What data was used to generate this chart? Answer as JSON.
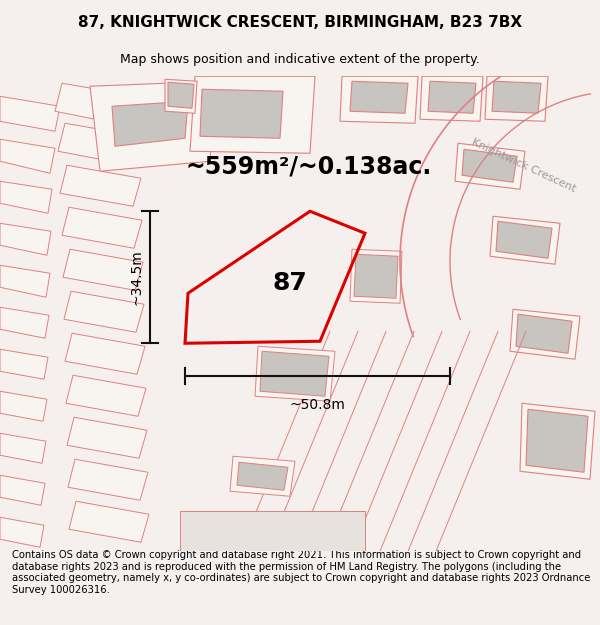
{
  "title": "87, KNIGHTWICK CRESCENT, BIRMINGHAM, B23 7BX",
  "subtitle": "Map shows position and indicative extent of the property.",
  "area_text": "~559m²/~0.138ac.",
  "width_text": "~50.8m",
  "height_text": "~34.5m",
  "property_number": "87",
  "street_label": "Knightwick Crescent",
  "footer_text": "Contains OS data © Crown copyright and database right 2021. This information is subject to Crown copyright and database rights 2023 and is reproduced with the permission of HM Land Registry. The polygons (including the associated geometry, namely x, y co-ordinates) are subject to Crown copyright and database rights 2023 Ordnance Survey 100026316.",
  "bg_color": "#f5f0ee",
  "map_bg_color": "#f0ebe8",
  "outline_color": "#e08080",
  "property_outline_color": "#dd0000",
  "building_fill": "#c8c4c0",
  "dim_line_color": "#111111",
  "title_fontsize": 11,
  "subtitle_fontsize": 9,
  "area_fontsize": 17,
  "label_fontsize": 10,
  "footer_fontsize": 7.2,
  "number_fontsize": 18,
  "street_fontsize": 8
}
